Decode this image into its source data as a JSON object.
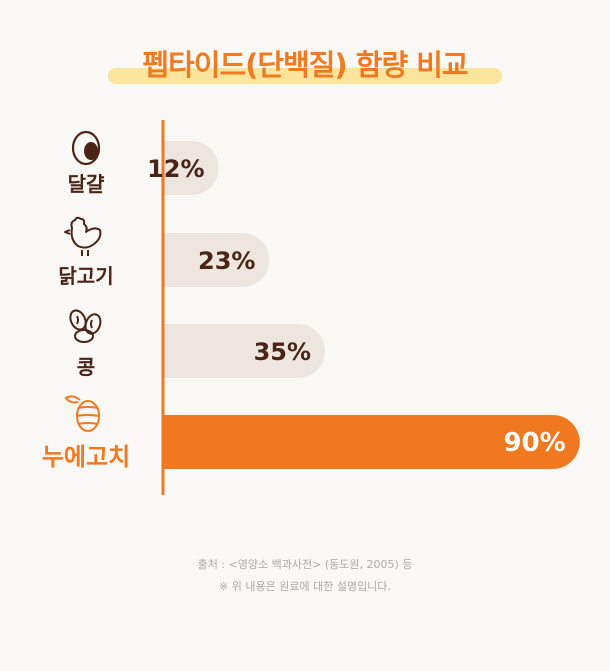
{
  "title": "펩타이드(단백질) 함량 비교",
  "chart_data": {
    "type": "bar",
    "orientation": "horizontal",
    "categories": [
      "달걀",
      "닭고기",
      "콩",
      "누에고치"
    ],
    "values": [
      12,
      23,
      35,
      90
    ],
    "data_labels": [
      "12%",
      "23%",
      "35%",
      "90%"
    ],
    "highlight_index": 3,
    "xlim": [
      0,
      100
    ],
    "colors": {
      "bar": "#ede6df",
      "highlight": "#f07820",
      "axis": "#f07820",
      "text": "#4a2417",
      "highlight_text": "#f07820"
    }
  },
  "icons": [
    "egg-icon",
    "chicken-icon",
    "beans-icon",
    "cocoon-icon"
  ],
  "footer": {
    "source": "출처 : <영양소 백과사전> (동도원, 2005) 등",
    "note": "※ 위 내용은 원료에 대한 설명입니다."
  }
}
